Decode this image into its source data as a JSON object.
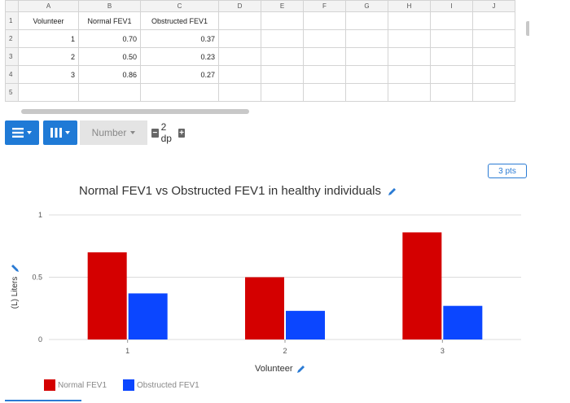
{
  "spreadsheet": {
    "col_letters": [
      "A",
      "B",
      "C",
      "D",
      "E",
      "F",
      "G",
      "H",
      "I",
      "J"
    ],
    "row_numbers": [
      "1",
      "2",
      "3",
      "4",
      "5"
    ],
    "headers": [
      "Volunteer",
      "Normal FEV1",
      "Obstructed FEV1"
    ],
    "rows": [
      [
        "1",
        "0.70",
        "0.37"
      ],
      [
        "2",
        "0.50",
        "0.23"
      ],
      [
        "3",
        "0.86",
        "0.27"
      ]
    ]
  },
  "toolbar": {
    "rows_icon": "rows-menu-icon",
    "cols_icon": "columns-menu-icon",
    "number_format": "Number",
    "decimal_places": "2 dp",
    "decrease": "−",
    "increase": "+"
  },
  "points_badge": "3 pts",
  "colors": {
    "accent": "#2a7bd4",
    "normal": "#d40000",
    "obstructed": "#0b46ff"
  },
  "chart_data": {
    "type": "bar",
    "title": "Normal FEV1 vs Obstructed FEV1 in healthy individuals",
    "xlabel": "Volunteer",
    "ylabel": "(L) Liters",
    "categories": [
      "1",
      "2",
      "3"
    ],
    "series": [
      {
        "name": "Normal FEV1",
        "values": [
          0.7,
          0.5,
          0.86
        ],
        "color": "#d40000"
      },
      {
        "name": "Obstructed FEV1",
        "values": [
          0.37,
          0.23,
          0.27
        ],
        "color": "#0b46ff"
      }
    ],
    "ylim": [
      0,
      1
    ],
    "yticks": [
      "0",
      "0.5",
      "1"
    ],
    "grid": true,
    "legend": "bottom-left"
  }
}
